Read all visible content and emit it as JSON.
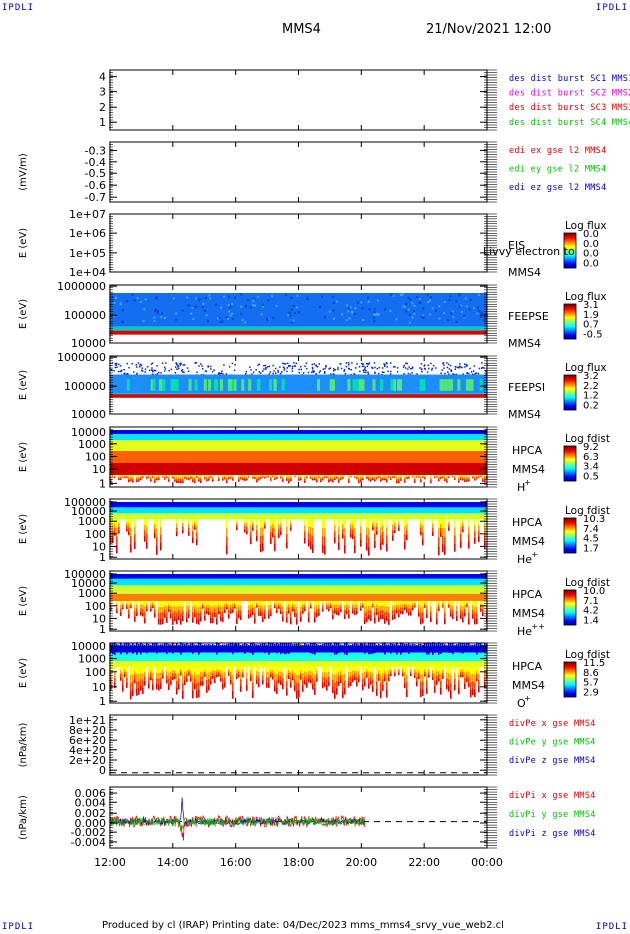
{
  "header": {
    "corner_tl": "IPDLI",
    "corner_tr": "IPDLI",
    "corner_bl": "IPDLI",
    "corner_br": "IPDLI",
    "spacecraft": "MMS4",
    "date_time": "21/Nov/2021 12:00"
  },
  "footer": {
    "text": "Produced by cl (IRAP)   Printing date: 04/Dec/2023   mms_mms4_srvy_vue_web2.cl"
  },
  "x_axis": {
    "tick_labels": [
      "12:00",
      "14:00",
      "16:00",
      "18:00",
      "20:00",
      "22:00",
      "00:00"
    ]
  },
  "colors": {
    "blue": "#0000c8",
    "magenta": "#e000e0",
    "red": "#e00000",
    "green": "#00c000"
  },
  "chart_data": [
    {
      "id": "p1",
      "type": "line",
      "ylabel": "",
      "y_ticks": [
        "4",
        "3",
        "2",
        "1"
      ],
      "ylim": [
        0.7,
        4.5
      ],
      "legend": [
        {
          "text": "des dist burst SC1 MMS1",
          "color": "#0000c8"
        },
        {
          "text": "des dist burst SC2 MMS2",
          "color": "#e000e0"
        },
        {
          "text": "des dist burst SC3 MMS3",
          "color": "#e00000"
        },
        {
          "text": "des dist burst SC4 MMS4",
          "color": "#00c000"
        }
      ]
    },
    {
      "id": "p2",
      "type": "line",
      "ylabel": "(mV/m)",
      "y_ticks": [
        "-0.3",
        "-0.4",
        "-0.5",
        "-0.6",
        "-0.7"
      ],
      "ylim": [
        -0.78,
        -0.22
      ],
      "legend": [
        {
          "text": "edi ex gse l2 MMS4",
          "color": "#e00000"
        },
        {
          "text": "edi ey gse l2 MMS4",
          "color": "#00c000"
        },
        {
          "text": "edi ez gse l2 MMS4",
          "color": "#0000c8"
        }
      ]
    },
    {
      "id": "p3",
      "type": "heatmap",
      "ylabel": "E (eV)",
      "y_ticks": [
        "1e+07",
        "1e+06",
        "1e+05",
        "1e+04"
      ],
      "ylim": [
        10000,
        10000000
      ],
      "instrument": "EIS",
      "overlay_text": "Livvy electron to",
      "spacecraft": "MMS4",
      "colorbar": {
        "title": "Log flux",
        "ticks": [
          "0.0",
          "0.0",
          "0.0",
          "0.0"
        ]
      }
    },
    {
      "id": "p4",
      "type": "heatmap",
      "ylabel": "E (eV)",
      "y_ticks": [
        "1000000",
        "100000",
        "10000"
      ],
      "ylim": [
        10000,
        1000000
      ],
      "instrument": "FEEPSE",
      "spacecraft": "MMS4",
      "colorbar": {
        "title": "Log flux",
        "ticks": [
          "3.1",
          "1.9",
          "0.7",
          "-0.5"
        ]
      },
      "data_extent_hours": [
        0,
        12
      ],
      "style": "feeps_e"
    },
    {
      "id": "p5",
      "type": "heatmap",
      "ylabel": "E (eV)",
      "y_ticks": [
        "1000000",
        "100000",
        "10000"
      ],
      "ylim": [
        10000,
        1000000
      ],
      "instrument": "FEEPSI",
      "spacecraft": "MMS4",
      "colorbar": {
        "title": "Log flux",
        "ticks": [
          "3.2",
          "2.2",
          "1.2",
          "0.2"
        ]
      },
      "data_extent_hours": [
        0,
        12
      ],
      "style": "feeps_i"
    },
    {
      "id": "p6",
      "type": "heatmap",
      "ylabel": "E (eV)",
      "y_ticks": [
        "10000",
        "1000",
        "100",
        "10",
        "1"
      ],
      "ylim": [
        1,
        30000
      ],
      "instrument": "HPCA",
      "spacecraft": "MMS4",
      "species": "H",
      "species_sup": "+",
      "colorbar": {
        "title": "Log fdist",
        "ticks": [
          "9.2",
          "6.3",
          "3.4",
          "0.5"
        ]
      },
      "data_extent_hours": [
        0,
        12
      ],
      "style": "hpca_h"
    },
    {
      "id": "p7",
      "type": "heatmap",
      "ylabel": "E (eV)",
      "y_ticks": [
        "100000",
        "10000",
        "1000",
        "100",
        "10",
        "1"
      ],
      "ylim": [
        1,
        100000
      ],
      "instrument": "HPCA",
      "spacecraft": "MMS4",
      "species": "He",
      "species_sup": "+",
      "colorbar": {
        "title": "Log fdist",
        "ticks": [
          "10.3",
          "7.4",
          "4.5",
          "1.7"
        ]
      },
      "data_extent_hours": [
        0,
        12
      ],
      "style": "hpca_he"
    },
    {
      "id": "p8",
      "type": "heatmap",
      "ylabel": "E (eV)",
      "y_ticks": [
        "100000",
        "10000",
        "1000",
        "100",
        "10",
        "1"
      ],
      "ylim": [
        1,
        100000
      ],
      "instrument": "HPCA",
      "spacecraft": "MMS4",
      "species": "He",
      "species_sup": "++",
      "colorbar": {
        "title": "Log fdist",
        "ticks": [
          "10.0",
          "7.1",
          "4.2",
          "1.4"
        ]
      },
      "data_extent_hours": [
        0,
        12
      ],
      "style": "hpca_he2"
    },
    {
      "id": "p9",
      "type": "heatmap",
      "ylabel": "E (eV)",
      "y_ticks": [
        "10000",
        "1000",
        "100",
        "10",
        "1"
      ],
      "ylim": [
        1,
        30000
      ],
      "instrument": "HPCA",
      "spacecraft": "MMS4",
      "species": "O",
      "species_sup": "+",
      "colorbar": {
        "title": "Log fdist",
        "ticks": [
          "11.5",
          "8.6",
          "5.7",
          "2.9"
        ]
      },
      "data_extent_hours": [
        0,
        12
      ],
      "style": "hpca_o"
    },
    {
      "id": "p10",
      "type": "line",
      "ylabel": "(nPa/km)",
      "y_ticks": [
        "1e+21",
        "8e+20",
        "6e+20",
        "4e+20",
        "2e+20",
        "0"
      ],
      "ylim": [
        -4e+19,
        1.05e+21
      ],
      "zero_line": true,
      "legend": [
        {
          "text": "divPe x gse MMS4",
          "color": "#e00000"
        },
        {
          "text": "divPe y gse MMS4",
          "color": "#00c000"
        },
        {
          "text": "divPe z gse MMS4",
          "color": "#0000c8"
        }
      ]
    },
    {
      "id": "p11",
      "type": "line",
      "ylabel": "(nPa/km)",
      "y_ticks": [
        "0.006",
        "0.004",
        "0.002",
        "0.000",
        "-0.002",
        "-0.004"
      ],
      "ylim": [
        -0.0055,
        0.0072
      ],
      "zero_line": true,
      "data_extent_hours": [
        0,
        8.15
      ],
      "spike_hour": 2.3,
      "noise_amplitude": {
        "x": 0.0012,
        "y": 0.0008,
        "z": 0.0006
      },
      "legend": [
        {
          "text": "divPi x gse MMS4",
          "color": "#e00000"
        },
        {
          "text": "divPi y gse MMS4",
          "color": "#00c000"
        },
        {
          "text": "divPi z gse MMS4",
          "color": "#0000c8"
        }
      ]
    }
  ]
}
